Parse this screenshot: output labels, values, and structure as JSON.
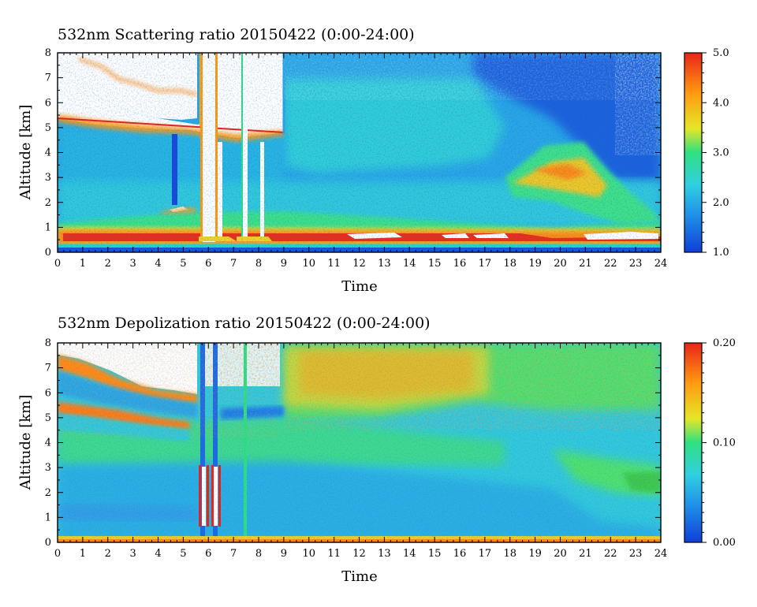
{
  "chart_data": [
    {
      "type": "heatmap",
      "title": "532nm Scattering ratio  20150422 (0:00-24:00)",
      "xlabel": "Time",
      "ylabel": "Altitude [km]",
      "xlim": [
        0,
        24
      ],
      "ylim": [
        0,
        8
      ],
      "x_ticks": [
        "0",
        "1",
        "2",
        "3",
        "4",
        "5",
        "6",
        "7",
        "8",
        "9",
        "10",
        "11",
        "12",
        "13",
        "14",
        "15",
        "16",
        "17",
        "18",
        "19",
        "20",
        "21",
        "22",
        "23",
        "24"
      ],
      "y_ticks": [
        "0",
        "1",
        "2",
        "3",
        "4",
        "5",
        "6",
        "7",
        "8"
      ],
      "colorbar": {
        "range": [
          1.0,
          5.0
        ],
        "ticks": [
          "1.0",
          "2.0",
          "3.0",
          "4.0",
          "5.0"
        ],
        "colors": [
          "#0f3fd8",
          "#1f8ee8",
          "#2fd0e0",
          "#2fe080",
          "#e6e628",
          "#ff9a10",
          "#e8241a"
        ]
      },
      "saturated_color": "#ffffff",
      "features": {
        "boundary_layer_km": [
          0.4,
          1.2
        ],
        "cloud_top_km_early": 7.6,
        "cloud_base_km_early": 5.5,
        "evening_aerosol_layer_hours": [
          18,
          22
        ],
        "evening_aerosol_layer_km": [
          2.0,
          4.0
        ]
      }
    },
    {
      "type": "heatmap",
      "title": "532nm Depolization ratio  20150422 (0:00-24:00)",
      "xlabel": "Time",
      "ylabel": "Altitude [km]",
      "xlim": [
        0,
        24
      ],
      "ylim": [
        0,
        8
      ],
      "x_ticks": [
        "0",
        "1",
        "2",
        "3",
        "4",
        "5",
        "6",
        "7",
        "8",
        "9",
        "10",
        "11",
        "12",
        "13",
        "14",
        "15",
        "16",
        "17",
        "18",
        "19",
        "20",
        "21",
        "22",
        "23",
        "24"
      ],
      "y_ticks": [
        "0",
        "1",
        "2",
        "3",
        "4",
        "5",
        "6",
        "7",
        "8"
      ],
      "colorbar": {
        "range": [
          0.0,
          0.2
        ],
        "ticks": [
          "0.00",
          "0.10",
          "0.20"
        ],
        "colors": [
          "#0f3fd8",
          "#1f8ee8",
          "#2fd0e0",
          "#2fe080",
          "#e6e628",
          "#ff9a10",
          "#e8241a"
        ]
      },
      "saturated_color": "#ffffff"
    }
  ]
}
